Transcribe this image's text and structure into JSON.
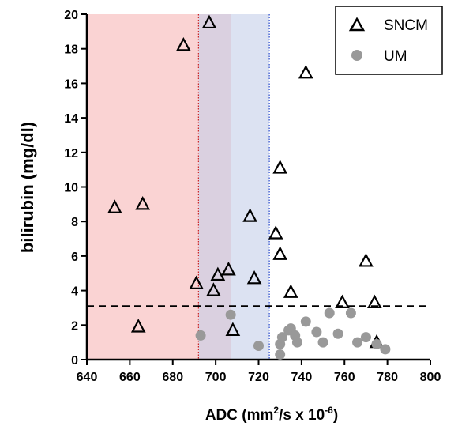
{
  "chart_data": {
    "type": "scatter",
    "title": "",
    "xlabel": {
      "base": "ADC (mm",
      "sup1": "2",
      "mid": "/s x 10",
      "sup2": "-6",
      "tail": ")"
    },
    "ylabel": "bilirubin (mg/dl)",
    "xlim": [
      640,
      800
    ],
    "ylim": [
      0,
      20
    ],
    "x_ticks": [
      "640",
      "660",
      "680",
      "700",
      "720",
      "740",
      "760",
      "780",
      "800"
    ],
    "y_ticks": [
      "0",
      "2",
      "4",
      "6",
      "8",
      "10",
      "12",
      "14",
      "16",
      "18",
      "20"
    ],
    "grid": false,
    "legend_position": "top-right",
    "regions": [
      {
        "x_from": 640,
        "x_to": 707,
        "color": "#f9c8c8",
        "opacity": 0.8
      },
      {
        "x_from": 692,
        "x_to": 725,
        "color": "#c5cfe9",
        "opacity": 0.6
      }
    ],
    "vertical_lines": [
      {
        "x": 692,
        "color": "#cc2222",
        "style": "dotted"
      },
      {
        "x": 725,
        "color": "#2244cc",
        "style": "dotted"
      }
    ],
    "horizontal_lines": [
      {
        "y": 3.1,
        "color": "#000000",
        "style": "dashed"
      }
    ],
    "series": [
      {
        "name": "SNCM",
        "marker": "triangle-open",
        "color": "#000000",
        "points": [
          [
            653,
            8.8
          ],
          [
            664,
            1.9
          ],
          [
            666,
            9.0
          ],
          [
            685,
            18.2
          ],
          [
            697,
            19.5
          ],
          [
            691,
            4.4
          ],
          [
            699,
            4.0
          ],
          [
            701,
            4.9
          ],
          [
            706,
            5.2
          ],
          [
            708,
            1.7
          ],
          [
            716,
            8.3
          ],
          [
            718,
            4.7
          ],
          [
            728,
            7.3
          ],
          [
            730,
            6.1
          ],
          [
            730,
            11.1
          ],
          [
            735,
            3.9
          ],
          [
            742,
            16.6
          ],
          [
            759,
            3.3
          ],
          [
            770,
            5.7
          ],
          [
            774,
            3.3
          ],
          [
            775,
            1.0
          ]
        ]
      },
      {
        "name": "UM",
        "marker": "circle-filled",
        "color": "#999999",
        "points": [
          [
            693,
            1.4
          ],
          [
            707,
            2.6
          ],
          [
            720,
            0.8
          ],
          [
            730,
            0.3
          ],
          [
            730,
            0.9
          ],
          [
            731,
            1.3
          ],
          [
            734,
            1.7
          ],
          [
            735,
            1.8
          ],
          [
            737,
            1.4
          ],
          [
            738,
            1.0
          ],
          [
            742,
            2.2
          ],
          [
            747,
            1.6
          ],
          [
            750,
            1.0
          ],
          [
            753,
            2.7
          ],
          [
            757,
            1.5
          ],
          [
            763,
            2.7
          ],
          [
            766,
            1.0
          ],
          [
            770,
            1.3
          ],
          [
            775,
            0.9
          ],
          [
            779,
            0.6
          ]
        ]
      }
    ]
  }
}
